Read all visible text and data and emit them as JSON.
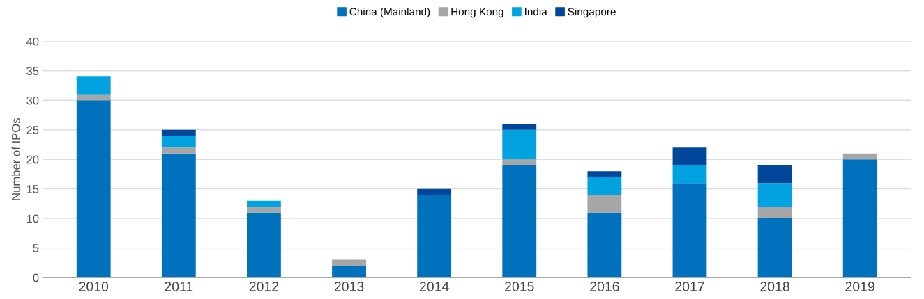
{
  "chart_data": {
    "type": "bar",
    "stacked": true,
    "ylabel": "Number of IPOs",
    "categories": [
      "2010",
      "2011",
      "2012",
      "2013",
      "2014",
      "2015",
      "2016",
      "2017",
      "2018",
      "2019"
    ],
    "series": [
      {
        "name": "China (Mainland)",
        "color": "#0071bc",
        "values": [
          30,
          21,
          11,
          2,
          14,
          19,
          11,
          16,
          10,
          20
        ]
      },
      {
        "name": "Hong Kong",
        "color": "#a6a6a6",
        "values": [
          1,
          1,
          1,
          1,
          0,
          1,
          3,
          0,
          2,
          1
        ]
      },
      {
        "name": "India",
        "color": "#00a3e0",
        "values": [
          3,
          2,
          1,
          0,
          0,
          5,
          3,
          3,
          4,
          0
        ]
      },
      {
        "name": "Singapore",
        "color": "#00479b",
        "values": [
          0,
          1,
          0,
          0,
          1,
          1,
          1,
          3,
          3,
          0
        ]
      }
    ],
    "ylim": [
      0,
      40
    ],
    "yticks": [
      0,
      5,
      10,
      15,
      20,
      25,
      30,
      35,
      40
    ],
    "grid": "y",
    "legend": "top"
  }
}
